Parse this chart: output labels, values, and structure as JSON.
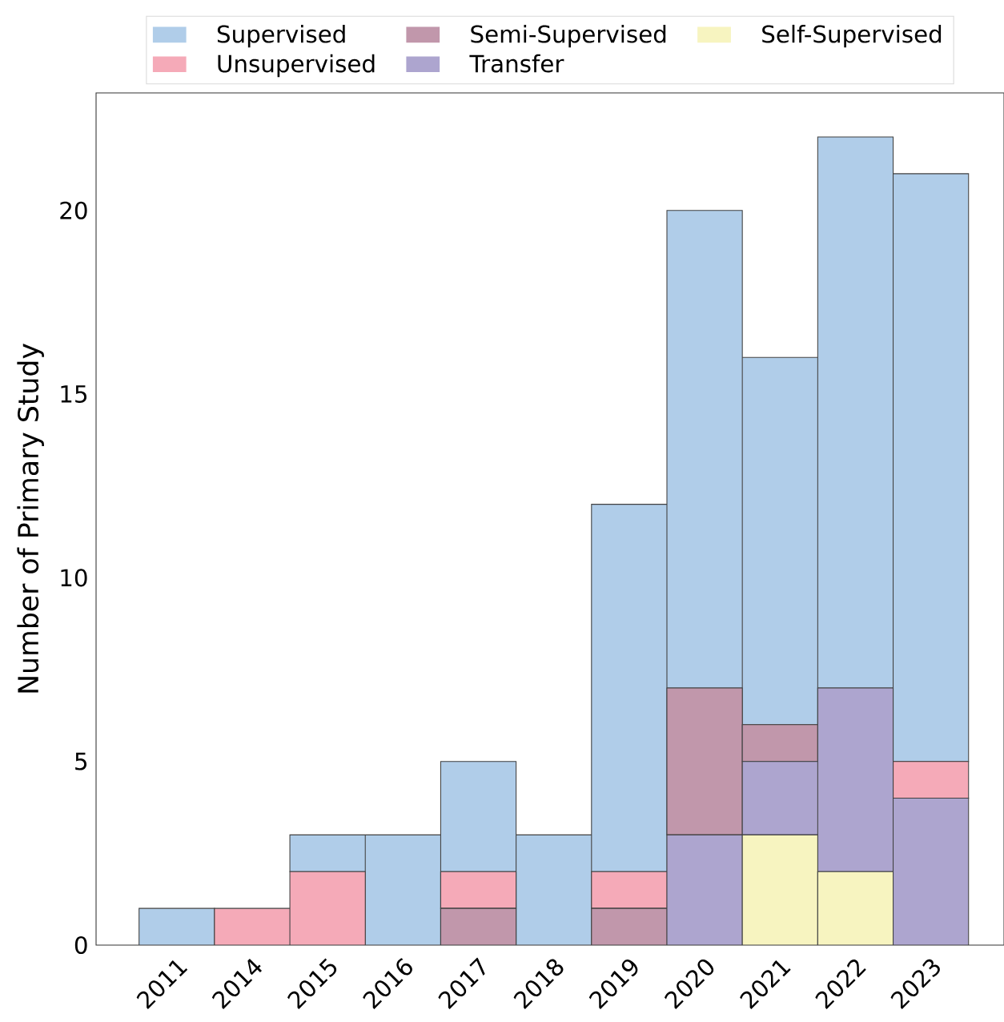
{
  "chart_data": {
    "type": "bar",
    "stacked": true,
    "ylabel": "Number of Primary Study",
    "categories": [
      "2011",
      "2014",
      "2015",
      "2016",
      "2017",
      "2018",
      "2019",
      "2020",
      "2021",
      "2022",
      "2023"
    ],
    "series": [
      {
        "name": "Self-Supervised",
        "color": "#f7f4c0",
        "values": [
          0,
          0,
          0,
          0,
          0,
          0,
          0,
          0,
          3,
          2,
          0
        ]
      },
      {
        "name": "Transfer",
        "color": "#ada5cf",
        "values": [
          0,
          0,
          0,
          0,
          0,
          0,
          0,
          3,
          2,
          5,
          4
        ]
      },
      {
        "name": "Semi-Supervised",
        "color": "#c197ab",
        "values": [
          0,
          0,
          0,
          0,
          1,
          0,
          1,
          4,
          1,
          0,
          0
        ]
      },
      {
        "name": "Unsupervised",
        "color": "#f5aab8",
        "values": [
          0,
          1,
          2,
          0,
          1,
          0,
          1,
          0,
          0,
          0,
          1
        ]
      },
      {
        "name": "Supervised",
        "color": "#b0cde9",
        "values": [
          1,
          0,
          1,
          3,
          3,
          3,
          10,
          13,
          10,
          15,
          16
        ]
      }
    ],
    "ylim": [
      0,
      23.2
    ],
    "yticks": [
      0,
      5,
      10,
      15,
      20
    ],
    "grid": false,
    "legend": "top"
  }
}
